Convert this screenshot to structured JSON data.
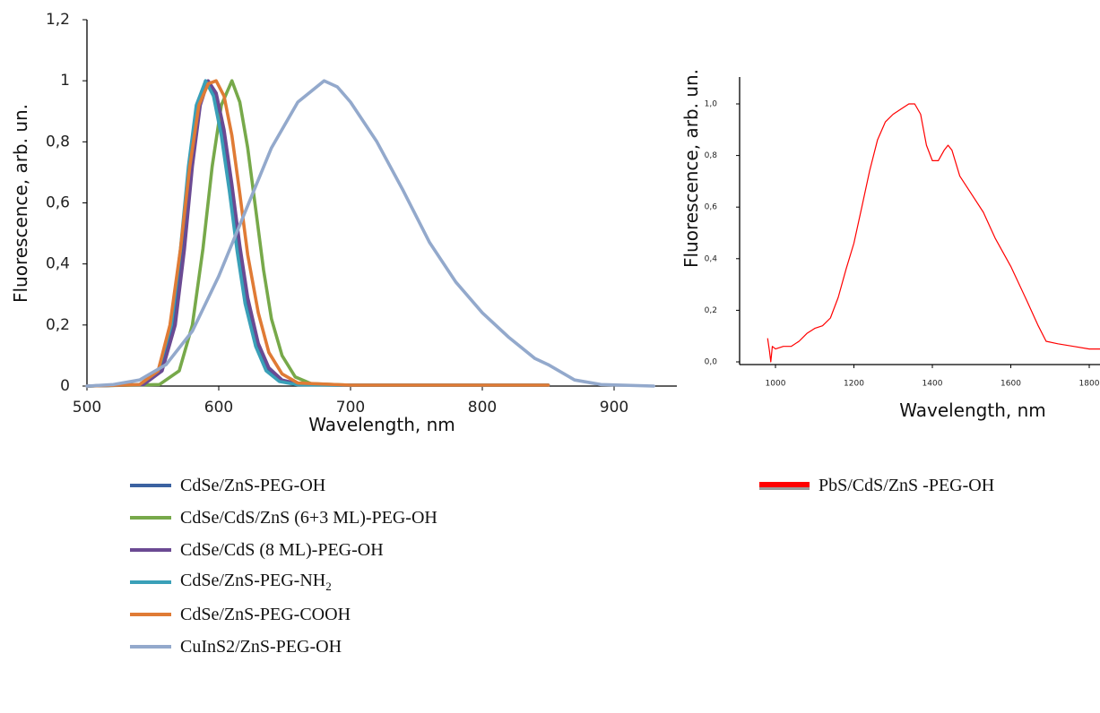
{
  "chart_data": [
    {
      "type": "line",
      "title": "",
      "xlabel": "Wavelength, nm",
      "ylabel": "Fluorescence, arb. un.",
      "xlim": [
        500,
        930
      ],
      "ylim": [
        0,
        1.2
      ],
      "x_ticks": [
        "500",
        "600",
        "700",
        "800",
        "900"
      ],
      "y_ticks": [
        "0",
        "0,2",
        "0,4",
        "0,6",
        "0,8",
        "1",
        "1,2"
      ],
      "series": [
        {
          "name": "CdSe/ZnS-PEG-OH",
          "color": "#3b62a1",
          "points": [
            [
              500,
              0
            ],
            [
              540,
              0.005
            ],
            [
              555,
              0.05
            ],
            [
              565,
              0.2
            ],
            [
              572,
              0.45
            ],
            [
              578,
              0.72
            ],
            [
              584,
              0.92
            ],
            [
              590,
              1.0
            ],
            [
              596,
              0.96
            ],
            [
              602,
              0.84
            ],
            [
              608,
              0.66
            ],
            [
              614,
              0.46
            ],
            [
              620,
              0.29
            ],
            [
              628,
              0.14
            ],
            [
              636,
              0.06
            ],
            [
              646,
              0.02
            ],
            [
              660,
              0.005
            ],
            [
              700,
              0.003
            ],
            [
              850,
              0.003
            ]
          ]
        },
        {
          "name": "CdSe/CdS/ZnS (6+3 ML)-PEG-OH",
          "color": "#77a94a",
          "points": [
            [
              500,
              0
            ],
            [
              555,
              0.005
            ],
            [
              570,
              0.05
            ],
            [
              580,
              0.2
            ],
            [
              588,
              0.45
            ],
            [
              595,
              0.72
            ],
            [
              602,
              0.92
            ],
            [
              610,
              1.0
            ],
            [
              616,
              0.93
            ],
            [
              622,
              0.78
            ],
            [
              628,
              0.58
            ],
            [
              634,
              0.38
            ],
            [
              640,
              0.22
            ],
            [
              648,
              0.1
            ],
            [
              658,
              0.03
            ],
            [
              670,
              0.008
            ],
            [
              700,
              0.003
            ],
            [
              850,
              0.003
            ]
          ]
        },
        {
          "name": "CdSe/CdS (8 ML)-PEG-OH",
          "color": "#6b4a93",
          "points": [
            [
              500,
              0
            ],
            [
              543,
              0.005
            ],
            [
              557,
              0.05
            ],
            [
              567,
              0.2
            ],
            [
              574,
              0.45
            ],
            [
              580,
              0.72
            ],
            [
              586,
              0.92
            ],
            [
              592,
              1.0
            ],
            [
              598,
              0.96
            ],
            [
              604,
              0.84
            ],
            [
              610,
              0.66
            ],
            [
              616,
              0.46
            ],
            [
              622,
              0.29
            ],
            [
              630,
              0.14
            ],
            [
              638,
              0.06
            ],
            [
              648,
              0.02
            ],
            [
              662,
              0.005
            ],
            [
              700,
              0.003
            ],
            [
              850,
              0.003
            ]
          ]
        },
        {
          "name": "CdSe/ZnS-PEG-NH2",
          "color": "#3aa0b8",
          "points": [
            [
              500,
              0
            ],
            [
              540,
              0.005
            ],
            [
              554,
              0.05
            ],
            [
              564,
              0.2
            ],
            [
              571,
              0.45
            ],
            [
              577,
              0.72
            ],
            [
              583,
              0.92
            ],
            [
              590,
              1.0
            ],
            [
              596,
              0.95
            ],
            [
              602,
              0.82
            ],
            [
              608,
              0.64
            ],
            [
              614,
              0.44
            ],
            [
              620,
              0.27
            ],
            [
              628,
              0.13
            ],
            [
              636,
              0.05
            ],
            [
              646,
              0.015
            ],
            [
              660,
              0.004
            ],
            [
              700,
              0.003
            ],
            [
              850,
              0.003
            ]
          ]
        },
        {
          "name": "CdSe/ZnS-PEG-COOH",
          "color": "#e07b35",
          "points": [
            [
              500,
              0
            ],
            [
              540,
              0.005
            ],
            [
              554,
              0.05
            ],
            [
              563,
              0.2
            ],
            [
              571,
              0.45
            ],
            [
              578,
              0.72
            ],
            [
              585,
              0.92
            ],
            [
              592,
              0.99
            ],
            [
              598,
              1.0
            ],
            [
              604,
              0.95
            ],
            [
              610,
              0.82
            ],
            [
              616,
              0.63
            ],
            [
              622,
              0.43
            ],
            [
              630,
              0.24
            ],
            [
              638,
              0.11
            ],
            [
              648,
              0.04
            ],
            [
              660,
              0.01
            ],
            [
              700,
              0.003
            ],
            [
              850,
              0.003
            ]
          ]
        },
        {
          "name": "CuInS2/ZnS-PEG-OH",
          "color": "#93a9cc",
          "points": [
            [
              500,
              0
            ],
            [
              520,
              0.005
            ],
            [
              540,
              0.02
            ],
            [
              560,
              0.07
            ],
            [
              580,
              0.18
            ],
            [
              600,
              0.36
            ],
            [
              620,
              0.57
            ],
            [
              640,
              0.78
            ],
            [
              660,
              0.93
            ],
            [
              680,
              1.0
            ],
            [
              690,
              0.98
            ],
            [
              700,
              0.93
            ],
            [
              720,
              0.8
            ],
            [
              740,
              0.64
            ],
            [
              760,
              0.47
            ],
            [
              780,
              0.34
            ],
            [
              800,
              0.24
            ],
            [
              820,
              0.16
            ],
            [
              840,
              0.09
            ],
            [
              850,
              0.07
            ],
            [
              870,
              0.02
            ],
            [
              890,
              0.005
            ],
            [
              930,
              0
            ]
          ]
        }
      ]
    },
    {
      "type": "line",
      "title": "",
      "xlabel": "Wavelength, nm",
      "ylabel": "Fluorescence, arb. un.",
      "xlim": [
        920,
        1840
      ],
      "ylim": [
        -0.06,
        1.1
      ],
      "x_ticks": [
        "1000",
        "1200",
        "1400",
        "1600",
        "1800"
      ],
      "y_ticks": [
        "0,0",
        "0,2",
        "0,4",
        "0,6",
        "0,8",
        "1,0"
      ],
      "series": [
        {
          "name": "PbS/CdS/ZnS -PEG-OH",
          "color": "#ff0000",
          "points": [
            [
              980,
              0.09
            ],
            [
              985,
              0.04
            ],
            [
              988,
              0.0
            ],
            [
              992,
              0.06
            ],
            [
              1000,
              0.05
            ],
            [
              1020,
              0.06
            ],
            [
              1040,
              0.06
            ],
            [
              1060,
              0.08
            ],
            [
              1080,
              0.11
            ],
            [
              1100,
              0.13
            ],
            [
              1120,
              0.14
            ],
            [
              1140,
              0.17
            ],
            [
              1160,
              0.25
            ],
            [
              1180,
              0.36
            ],
            [
              1200,
              0.46
            ],
            [
              1220,
              0.6
            ],
            [
              1240,
              0.74
            ],
            [
              1260,
              0.86
            ],
            [
              1280,
              0.93
            ],
            [
              1300,
              0.96
            ],
            [
              1320,
              0.98
            ],
            [
              1340,
              1.0
            ],
            [
              1355,
              1.0
            ],
            [
              1370,
              0.96
            ],
            [
              1385,
              0.84
            ],
            [
              1400,
              0.78
            ],
            [
              1415,
              0.78
            ],
            [
              1430,
              0.82
            ],
            [
              1440,
              0.84
            ],
            [
              1450,
              0.82
            ],
            [
              1470,
              0.72
            ],
            [
              1500,
              0.65
            ],
            [
              1530,
              0.58
            ],
            [
              1560,
              0.48
            ],
            [
              1600,
              0.37
            ],
            [
              1640,
              0.24
            ],
            [
              1670,
              0.14
            ],
            [
              1690,
              0.08
            ],
            [
              1720,
              0.07
            ],
            [
              1760,
              0.06
            ],
            [
              1800,
              0.05
            ],
            [
              1840,
              0.05
            ]
          ]
        }
      ]
    }
  ]
}
